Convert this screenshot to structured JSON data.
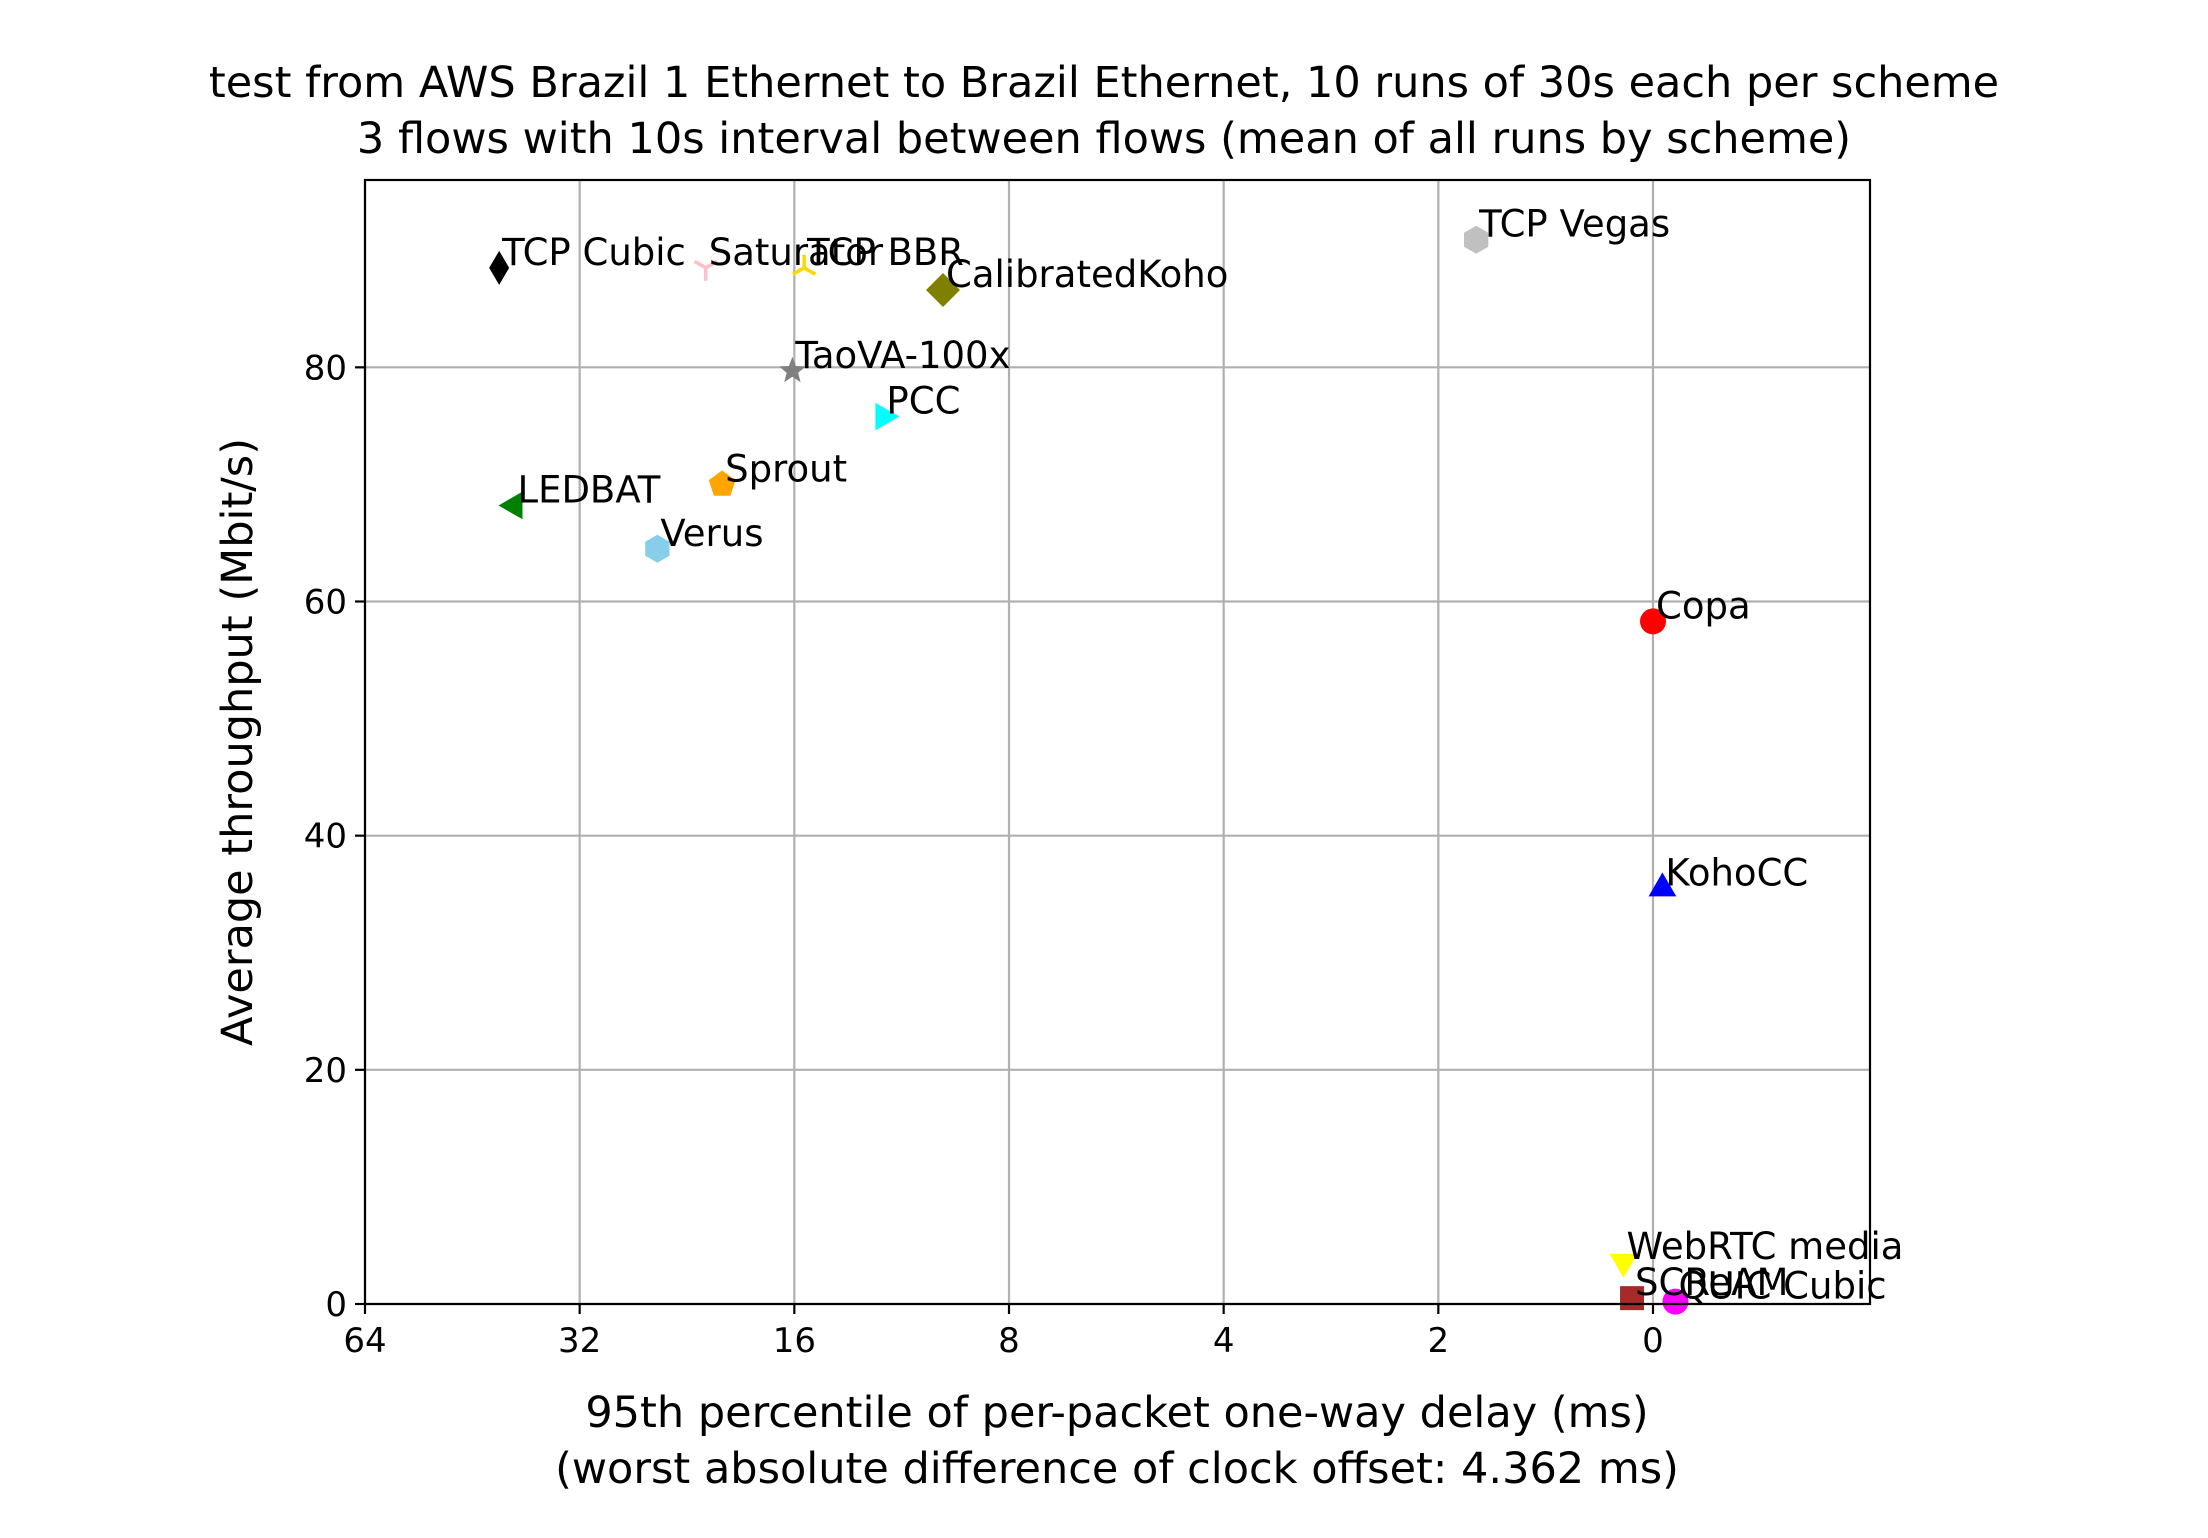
{
  "chart_data": {
    "type": "scatter",
    "title": [
      "test from AWS Brazil 1 Ethernet to Brazil Ethernet, 10 runs of 30s each per scheme",
      "3 flows with 10s interval between flows (mean of all runs by scheme)"
    ],
    "xlabel": [
      "95th percentile of per-packet one-way delay (ms)",
      "(worst absolute difference of clock offset: 4.362 ms)"
    ],
    "ylabel": "Average throughput (Mbit/s)",
    "x_scale": "log2, inverted",
    "x_ticks": [
      {
        "label": "64",
        "value": 64
      },
      {
        "label": "32",
        "value": 32
      },
      {
        "label": "16",
        "value": 16
      },
      {
        "label": "8",
        "value": 8
      },
      {
        "label": "4",
        "value": 4
      },
      {
        "label": "2",
        "value": 2
      },
      {
        "label": "0",
        "value": 1
      }
    ],
    "x_range": [
      64,
      0.5
    ],
    "y_ticks": [
      0,
      20,
      40,
      60,
      80
    ],
    "y_range": [
      0,
      96
    ],
    "grid": true,
    "points": [
      {
        "name": "TCP Cubic",
        "x": 41.5,
        "y": 88.5,
        "color": "#000000",
        "marker": "thin-diamond"
      },
      {
        "name": "Saturator",
        "x": 21.3,
        "y": 88.5,
        "color": "#ffc0cb",
        "marker": "tri-up"
      },
      {
        "name": "TCP BBR",
        "x": 15.5,
        "y": 88.5,
        "color": "#ffd700",
        "marker": "tri-down"
      },
      {
        "name": "CalibratedKoho",
        "x": 9.9,
        "y": 86.6,
        "color": "#808000",
        "marker": "diamond"
      },
      {
        "name": "TCP Vegas",
        "x": 1.77,
        "y": 90.9,
        "color": "#c0c0c0",
        "marker": "hexagon"
      },
      {
        "name": "TaoVA-100x",
        "x": 16.1,
        "y": 79.7,
        "color": "#808080",
        "marker": "star"
      },
      {
        "name": "PCC",
        "x": 12.0,
        "y": 75.8,
        "color": "#00ffff",
        "marker": "triangle-right"
      },
      {
        "name": "Sprout",
        "x": 20.2,
        "y": 70.0,
        "color": "#ffa500",
        "marker": "pentagon"
      },
      {
        "name": "LEDBAT",
        "x": 39.5,
        "y": 68.2,
        "color": "#008000",
        "marker": "triangle-left"
      },
      {
        "name": "Verus",
        "x": 24.9,
        "y": 64.5,
        "color": "#87ceeb",
        "marker": "hexagon"
      },
      {
        "name": "Copa",
        "x": 1.0,
        "y": 58.3,
        "color": "#ff0000",
        "marker": "circle"
      },
      {
        "name": "KohoCC",
        "x": 0.97,
        "y": 35.5,
        "color": "#0000ff",
        "marker": "triangle-up"
      },
      {
        "name": "WebRTC media",
        "x": 1.1,
        "y": 3.6,
        "color": "#ffff00",
        "marker": "triangle-down"
      },
      {
        "name": "SCReAM",
        "x": 1.07,
        "y": 0.5,
        "color": "#a52a2a",
        "marker": "square"
      },
      {
        "name": "QUIC Cubic",
        "x": 0.93,
        "y": 0.2,
        "color": "#ff00ff",
        "marker": "circle"
      }
    ]
  }
}
